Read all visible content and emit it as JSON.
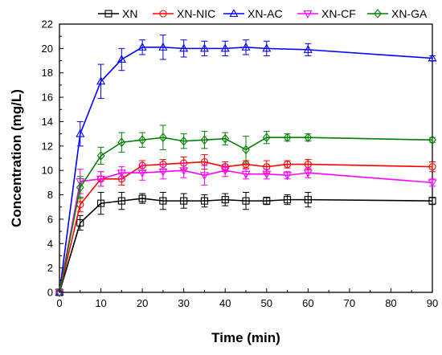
{
  "chart_data": {
    "type": "line",
    "xlabel": "Time (min)",
    "ylabel": "Concentration (mg/L)",
    "xlim": [
      0,
      90
    ],
    "ylim": [
      0,
      22
    ],
    "xticks": [
      0,
      10,
      20,
      30,
      40,
      50,
      60,
      70,
      80,
      90
    ],
    "yticks": [
      0,
      2,
      4,
      6,
      8,
      10,
      12,
      14,
      16,
      18,
      20,
      22
    ],
    "legend_position": "top",
    "grid": false,
    "series": [
      {
        "name": "XN",
        "color": "#000000",
        "marker": "square",
        "x": [
          0,
          5,
          10,
          15,
          20,
          25,
          30,
          35,
          40,
          45,
          50,
          55,
          60,
          90
        ],
        "y": [
          0,
          5.7,
          7.3,
          7.5,
          7.7,
          7.5,
          7.5,
          7.5,
          7.6,
          7.5,
          7.5,
          7.6,
          7.6,
          7.5
        ],
        "err": [
          0,
          0.6,
          0.9,
          0.7,
          0.4,
          0.7,
          0.6,
          0.5,
          0.5,
          0.7,
          0.3,
          0.4,
          0.6,
          0.3
        ]
      },
      {
        "name": "XN-NIC",
        "color": "#ff0000",
        "marker": "circle",
        "x": [
          0,
          5,
          10,
          15,
          20,
          25,
          30,
          35,
          40,
          45,
          50,
          55,
          60,
          90
        ],
        "y": [
          0,
          7.2,
          9.3,
          9.3,
          10.4,
          10.5,
          10.6,
          10.7,
          10.3,
          10.5,
          10.3,
          10.5,
          10.5,
          10.3
        ],
        "err": [
          0,
          0.6,
          0.6,
          0.5,
          0.4,
          0.4,
          0.5,
          0.6,
          0.4,
          0.3,
          0.5,
          0.3,
          0.4,
          0.4
        ]
      },
      {
        "name": "XN-AC",
        "color": "#0000ff",
        "marker": "triangle-up",
        "x": [
          0,
          5,
          10,
          15,
          20,
          25,
          30,
          35,
          40,
          45,
          50,
          60,
          90
        ],
        "y": [
          0,
          13.0,
          17.3,
          19.1,
          20.1,
          20.1,
          20.0,
          20.0,
          20.0,
          20.1,
          20.0,
          19.9,
          19.2
        ],
        "err": [
          0,
          1.0,
          1.4,
          0.9,
          0.6,
          1.0,
          0.7,
          0.6,
          0.6,
          0.6,
          0.6,
          0.5,
          0.2
        ]
      },
      {
        "name": "XN-CF",
        "color": "#ff00ff",
        "marker": "triangle-down",
        "x": [
          0,
          5,
          10,
          15,
          20,
          25,
          30,
          35,
          40,
          45,
          50,
          55,
          60,
          90
        ],
        "y": [
          0,
          9.1,
          9.3,
          9.8,
          9.8,
          9.9,
          10.0,
          9.6,
          10.0,
          9.7,
          9.7,
          9.6,
          9.8,
          9.0
        ],
        "err": [
          0,
          1.0,
          0.6,
          0.5,
          0.6,
          0.6,
          0.6,
          0.8,
          0.5,
          0.4,
          0.4,
          0.3,
          0.4,
          0.3
        ]
      },
      {
        "name": "XN-GA",
        "color": "#008000",
        "marker": "diamond",
        "x": [
          0,
          5,
          10,
          15,
          20,
          25,
          30,
          35,
          40,
          45,
          50,
          55,
          60,
          90
        ],
        "y": [
          0,
          8.6,
          11.2,
          12.3,
          12.5,
          12.7,
          12.4,
          12.5,
          12.6,
          11.7,
          12.7,
          12.7,
          12.7,
          12.5
        ],
        "err": [
          0,
          0.9,
          0.7,
          0.8,
          0.6,
          1.0,
          0.6,
          0.7,
          0.5,
          1.1,
          0.5,
          0.3,
          0.3,
          0.2
        ]
      }
    ]
  }
}
